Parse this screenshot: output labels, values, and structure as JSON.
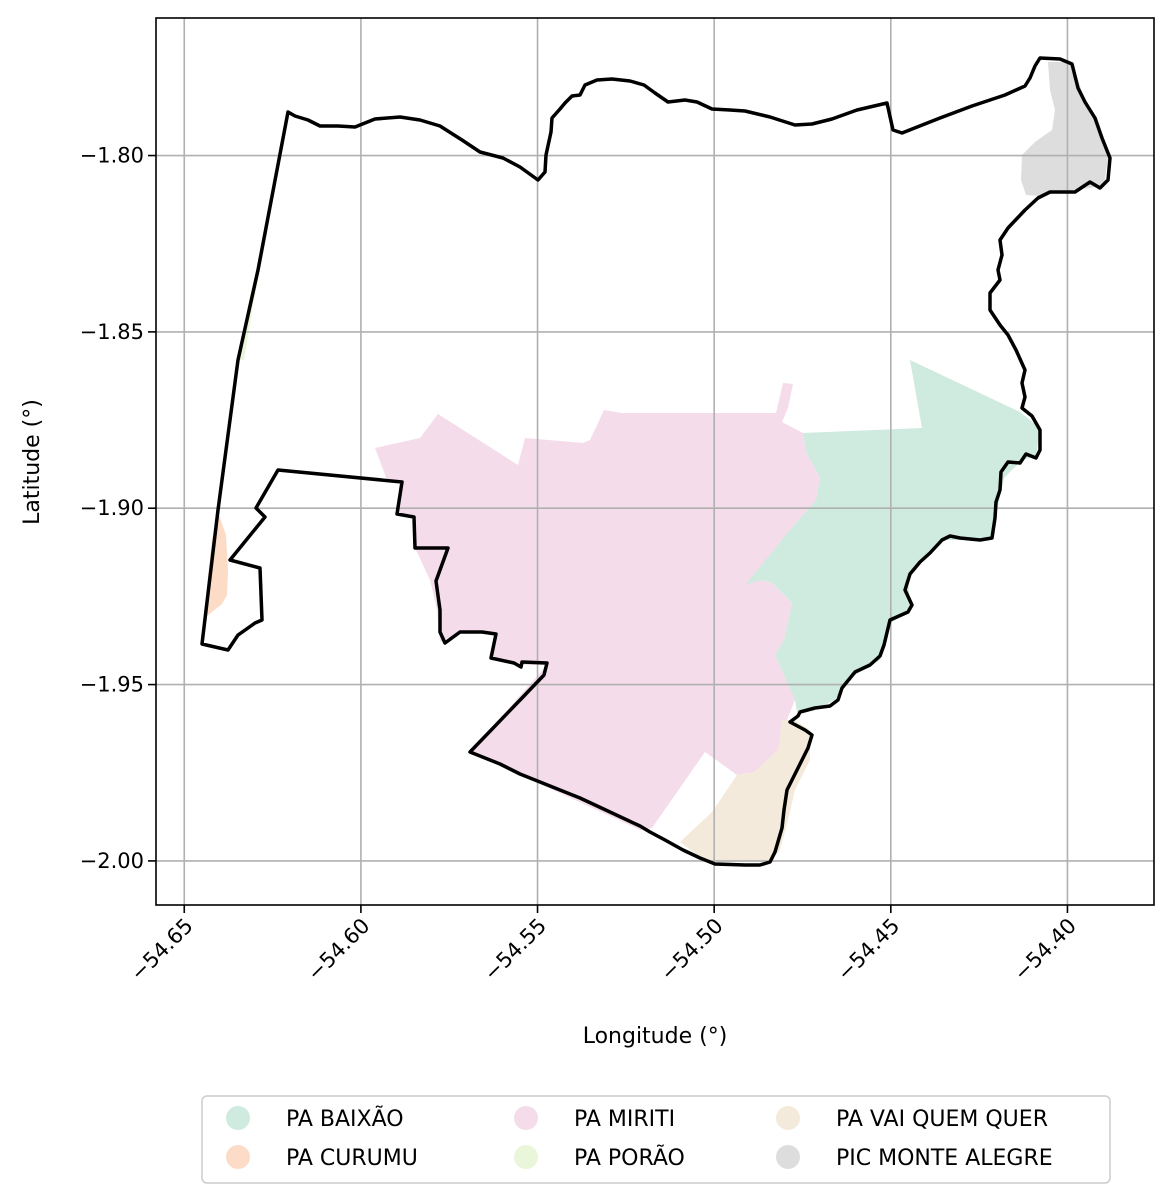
{
  "chart_data": {
    "type": "map",
    "xlabel": "Longitude (°)",
    "ylabel": "Latitude (°)",
    "xlim": [
      -54.658,
      -54.3755
    ],
    "ylim": [
      -2.0125,
      -1.761
    ],
    "x_ticks": [
      {
        "value": -54.65,
        "label": "−54.65"
      },
      {
        "value": -54.6,
        "label": "−54.60"
      },
      {
        "value": -54.55,
        "label": "−54.55"
      },
      {
        "value": -54.5,
        "label": "−54.50"
      },
      {
        "value": -54.45,
        "label": "−54.45"
      },
      {
        "value": -54.4,
        "label": "−54.40"
      }
    ],
    "y_ticks": [
      {
        "value": -1.8,
        "label": "−1.80"
      },
      {
        "value": -1.85,
        "label": "−1.85"
      },
      {
        "value": -1.9,
        "label": "−1.90"
      },
      {
        "value": -1.95,
        "label": "−1.95"
      },
      {
        "value": -2.0,
        "label": "−2.00"
      }
    ],
    "grid": true,
    "legend_placement": "bottom-center",
    "legend": [
      {
        "label": "PA BAIXÃO",
        "color": "#cfeade"
      },
      {
        "label": "PA CURUMU",
        "color": "#fcdcc7"
      },
      {
        "label": "PA MIRITI",
        "color": "#f5dceb"
      },
      {
        "label": "PA PORÃO",
        "color": "#e9f6d9"
      },
      {
        "label": "PA VAI QUEM QUER",
        "color": "#f4eadb"
      },
      {
        "label": "PIC MONTE ALEGRE",
        "color": "#dddddd"
      }
    ],
    "boundary_color": "#000000"
  }
}
